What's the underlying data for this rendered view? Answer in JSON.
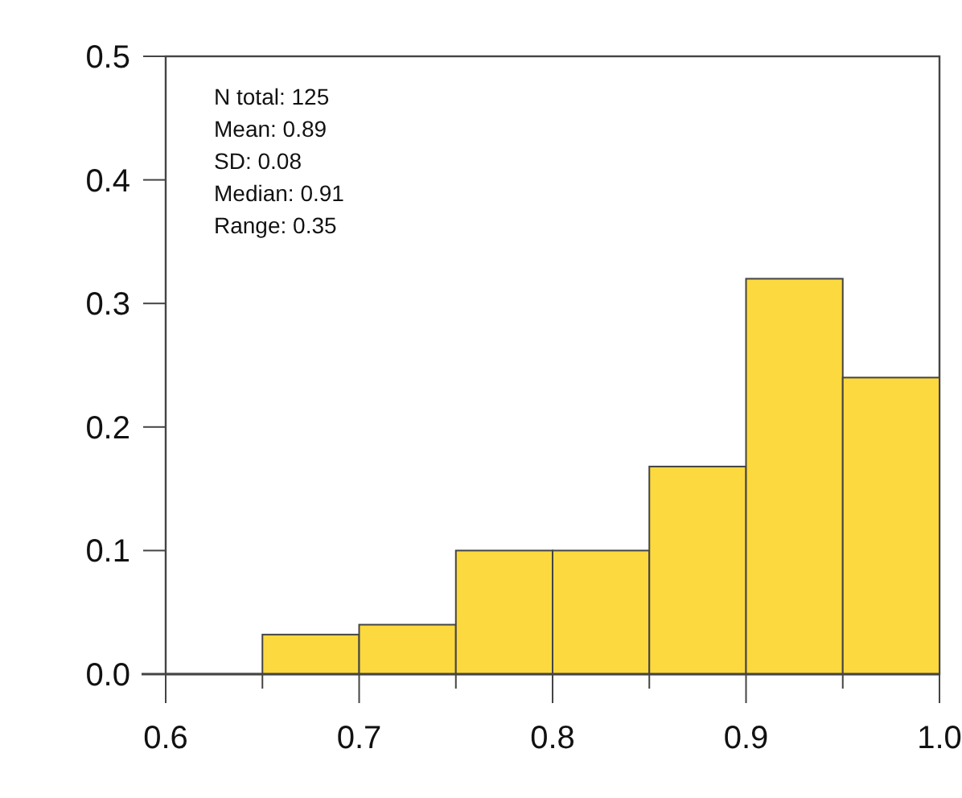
{
  "chart_data": {
    "type": "histogram",
    "bins": [
      0.65,
      0.7,
      0.75,
      0.8,
      0.85,
      0.9,
      0.95,
      1.0
    ],
    "values": [
      0.032,
      0.04,
      0.1,
      0.1,
      0.168,
      0.32,
      0.24
    ],
    "color": "#fcd93e",
    "xlim": [
      0.6,
      1.0
    ],
    "xticks": [
      0.6,
      {
        "value": 0.65,
        "label": null
      },
      0.7,
      {
        "value": 0.75,
        "label": null
      },
      0.8,
      {
        "value": 0.85,
        "label": null
      },
      0.9,
      {
        "value": 0.95,
        "label": null
      },
      {
        "value": 1.0,
        "label": "1.0"
      }
    ],
    "ylim": [
      0,
      0.5
    ],
    "yticks": [
      {
        "value": 0,
        "label": "0.0"
      },
      0.1,
      0.2,
      0.3,
      0.4,
      0.5
    ],
    "annotations": [
      "N total: 125",
      "Mean: 0.89",
      "SD: 0.08",
      "Median: 0.91",
      "Range: 0.35"
    ]
  }
}
